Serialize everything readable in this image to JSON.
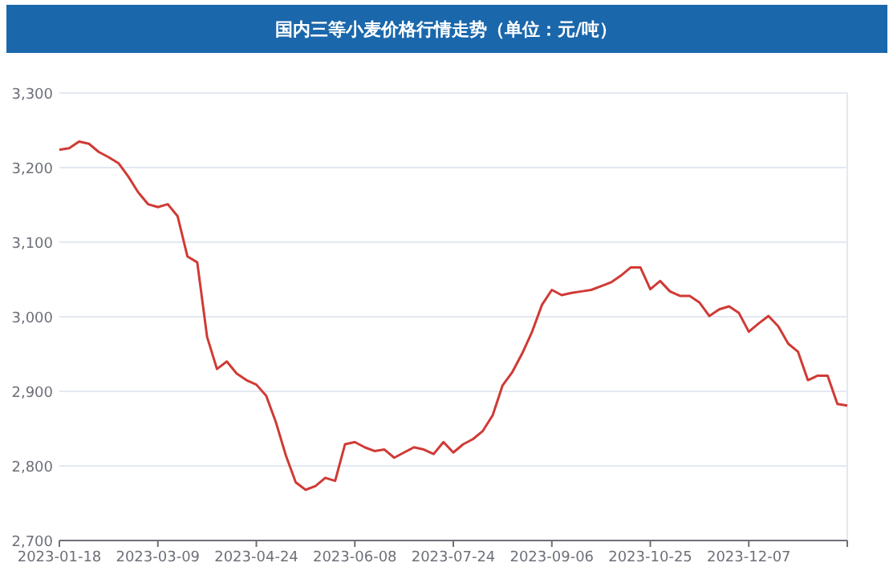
{
  "chart_data": {
    "type": "line",
    "title": "国内三等小麦价格行情走势（单位：元/吨）",
    "categories": [
      "2023-01-18",
      null,
      null,
      null,
      null,
      null,
      null,
      null,
      null,
      null,
      "2023-03-09",
      null,
      null,
      null,
      null,
      null,
      null,
      null,
      null,
      null,
      "2023-04-24",
      null,
      null,
      null,
      null,
      null,
      null,
      null,
      null,
      null,
      "2023-06-08",
      null,
      null,
      null,
      null,
      null,
      null,
      null,
      null,
      null,
      "2023-07-24",
      null,
      null,
      null,
      null,
      null,
      null,
      null,
      null,
      null,
      "2023-09-06",
      null,
      null,
      null,
      null,
      null,
      null,
      null,
      null,
      null,
      "2023-10-25",
      null,
      null,
      null,
      null,
      null,
      null,
      null,
      null,
      null,
      "2023-12-07",
      null,
      null,
      null,
      null,
      null,
      null,
      null,
      null,
      null,
      null
    ],
    "series": [
      {
        "color": "#d03a35",
        "values": [
          3224,
          3226,
          3235,
          3232,
          3221,
          3214,
          3206,
          3188,
          3167,
          3151,
          3147,
          3151,
          3135,
          3081,
          3073,
          2973,
          2930,
          2940,
          2924,
          2915,
          2909,
          2894,
          2858,
          2814,
          2778,
          2768,
          2773,
          2784,
          2780,
          2829,
          2832,
          2825,
          2820,
          2822,
          2811,
          2818,
          2825,
          2822,
          2816,
          2832,
          2818,
          2829,
          2836,
          2847,
          2868,
          2908,
          2926,
          2951,
          2980,
          3016,
          3036,
          3029,
          3032,
          3034,
          3036,
          3041,
          3046,
          3055,
          3066,
          3066,
          3037,
          3048,
          3034,
          3028,
          3028,
          3019,
          3001,
          3010,
          3014,
          3005,
          2980,
          2991,
          3001,
          2987,
          2964,
          2953,
          2915,
          2921,
          2921,
          2883,
          2881
        ]
      }
    ],
    "ylim": [
      2700,
      3300
    ],
    "yticks": [
      {
        "value": 2700,
        "label": "2,700"
      },
      {
        "value": 2800,
        "label": "2,800"
      },
      {
        "value": 2900,
        "label": "2,900"
      },
      {
        "value": 3000,
        "label": "3,000"
      },
      {
        "value": 3100,
        "label": "3,100"
      },
      {
        "value": 3200,
        "label": "3,200"
      },
      {
        "value": 3300,
        "label": "3,300"
      }
    ],
    "grid": "y"
  }
}
